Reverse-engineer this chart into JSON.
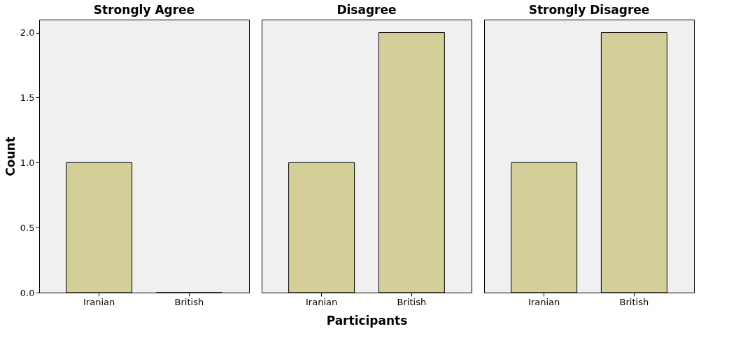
{
  "chart_data": [
    {
      "type": "bar",
      "title": "Strongly Agree",
      "ylabel": "Count",
      "categories": [
        "Iranian",
        "British"
      ],
      "values": [
        1,
        0
      ],
      "color": "#d4ce98",
      "ylim": [
        0,
        2.1
      ],
      "yticks": [
        {
          "value": 0,
          "label": "0.0"
        },
        {
          "value": 0.5,
          "label": "0.5"
        },
        {
          "value": 1,
          "label": "1.0"
        },
        {
          "value": 1.5,
          "label": "1.5"
        },
        {
          "value": 2,
          "label": "2.0"
        }
      ]
    },
    {
      "type": "bar",
      "title": "Disagree",
      "xlabel": "Participants",
      "categories": [
        "Iranian",
        "British"
      ],
      "values": [
        1,
        2
      ],
      "color": "#d4ce98",
      "ylim": [
        0,
        2.1
      ],
      "tick_labels": "x"
    },
    {
      "type": "bar",
      "title": "Strongly Disagree",
      "categories": [
        "Iranian",
        "British"
      ],
      "values": [
        1,
        2
      ],
      "color": "#d4ce98",
      "ylim": [
        0,
        2.1
      ],
      "tick_labels": "x"
    }
  ]
}
